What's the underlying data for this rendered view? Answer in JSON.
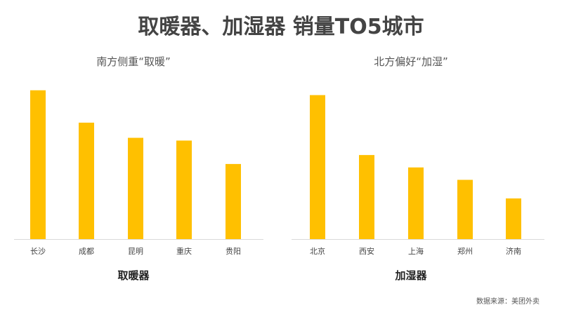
{
  "title": "取暖器、加湿器 销量TO5城市",
  "source": "数据来源：美团外卖",
  "colors": {
    "bar": "#FFC000",
    "axis": "#D9D9D9"
  },
  "chart_data": [
    {
      "type": "bar",
      "title": "南方侧重“取暖”",
      "xlabel": "取暖器",
      "ylabel": "",
      "grid": false,
      "categories": [
        "长沙",
        "成都",
        "昆明",
        "重庆",
        "贵阳"
      ],
      "values": [
        216,
        169,
        147,
        143,
        109
      ],
      "ylim": [
        0,
        230
      ]
    },
    {
      "type": "bar",
      "title": "北方偏好“加湿”",
      "xlabel": "加湿器",
      "ylabel": "",
      "grid": false,
      "categories": [
        "北京",
        "西安",
        "上海",
        "郑州",
        "济南"
      ],
      "values": [
        209,
        122,
        104,
        86,
        59
      ],
      "ylim": [
        0,
        230
      ]
    }
  ]
}
